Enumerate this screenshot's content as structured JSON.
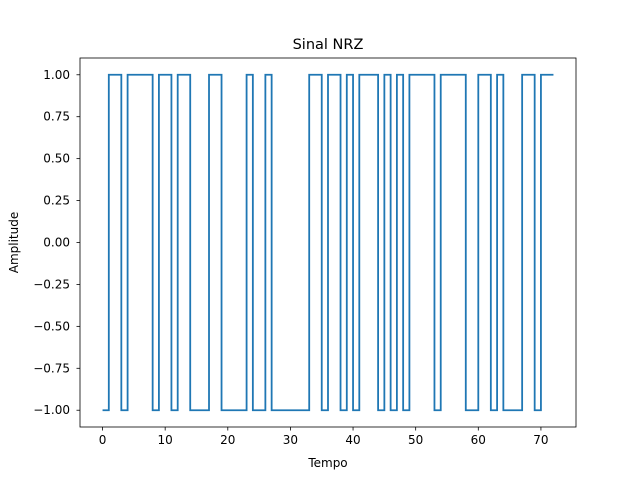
{
  "chart_data": {
    "type": "line",
    "title": "Sinal NRZ",
    "xlabel": "Tempo",
    "ylabel": "Amplitude",
    "xlim": [
      -3.6,
      75.6
    ],
    "ylim": [
      -1.1,
      1.1
    ],
    "xticks": [
      0,
      10,
      20,
      30,
      40,
      50,
      60,
      70
    ],
    "yticks": [
      -1.0,
      -0.75,
      -0.5,
      -0.25,
      0.0,
      0.25,
      0.5,
      0.75,
      1.0
    ],
    "xtick_labels": [
      "0",
      "10",
      "20",
      "30",
      "40",
      "50",
      "60",
      "70"
    ],
    "ytick_labels": [
      "−1.00",
      "−0.75",
      "−0.50",
      "−0.25",
      "0.00",
      "0.25",
      "0.50",
      "0.75",
      "1.00"
    ],
    "grid": false,
    "legend": false,
    "series": [
      {
        "color": "#1f77b4",
        "step": "post",
        "x": [
          0,
          72
        ],
        "bits": [
          -1,
          1,
          1,
          -1,
          1,
          1,
          1,
          1,
          -1,
          1,
          1,
          -1,
          1,
          1,
          -1,
          -1,
          -1,
          1,
          1,
          -1,
          -1,
          -1,
          -1,
          1,
          -1,
          -1,
          1,
          -1,
          -1,
          -1,
          -1,
          -1,
          -1,
          1,
          1,
          -1,
          1,
          1,
          -1,
          1,
          -1,
          1,
          1,
          1,
          -1,
          1,
          -1,
          1,
          -1,
          1,
          1,
          1,
          1,
          -1,
          1,
          1,
          1,
          1,
          -1,
          -1,
          1,
          1,
          -1,
          1,
          -1,
          -1,
          -1,
          1,
          1,
          -1,
          1,
          1,
          1
        ]
      }
    ]
  }
}
